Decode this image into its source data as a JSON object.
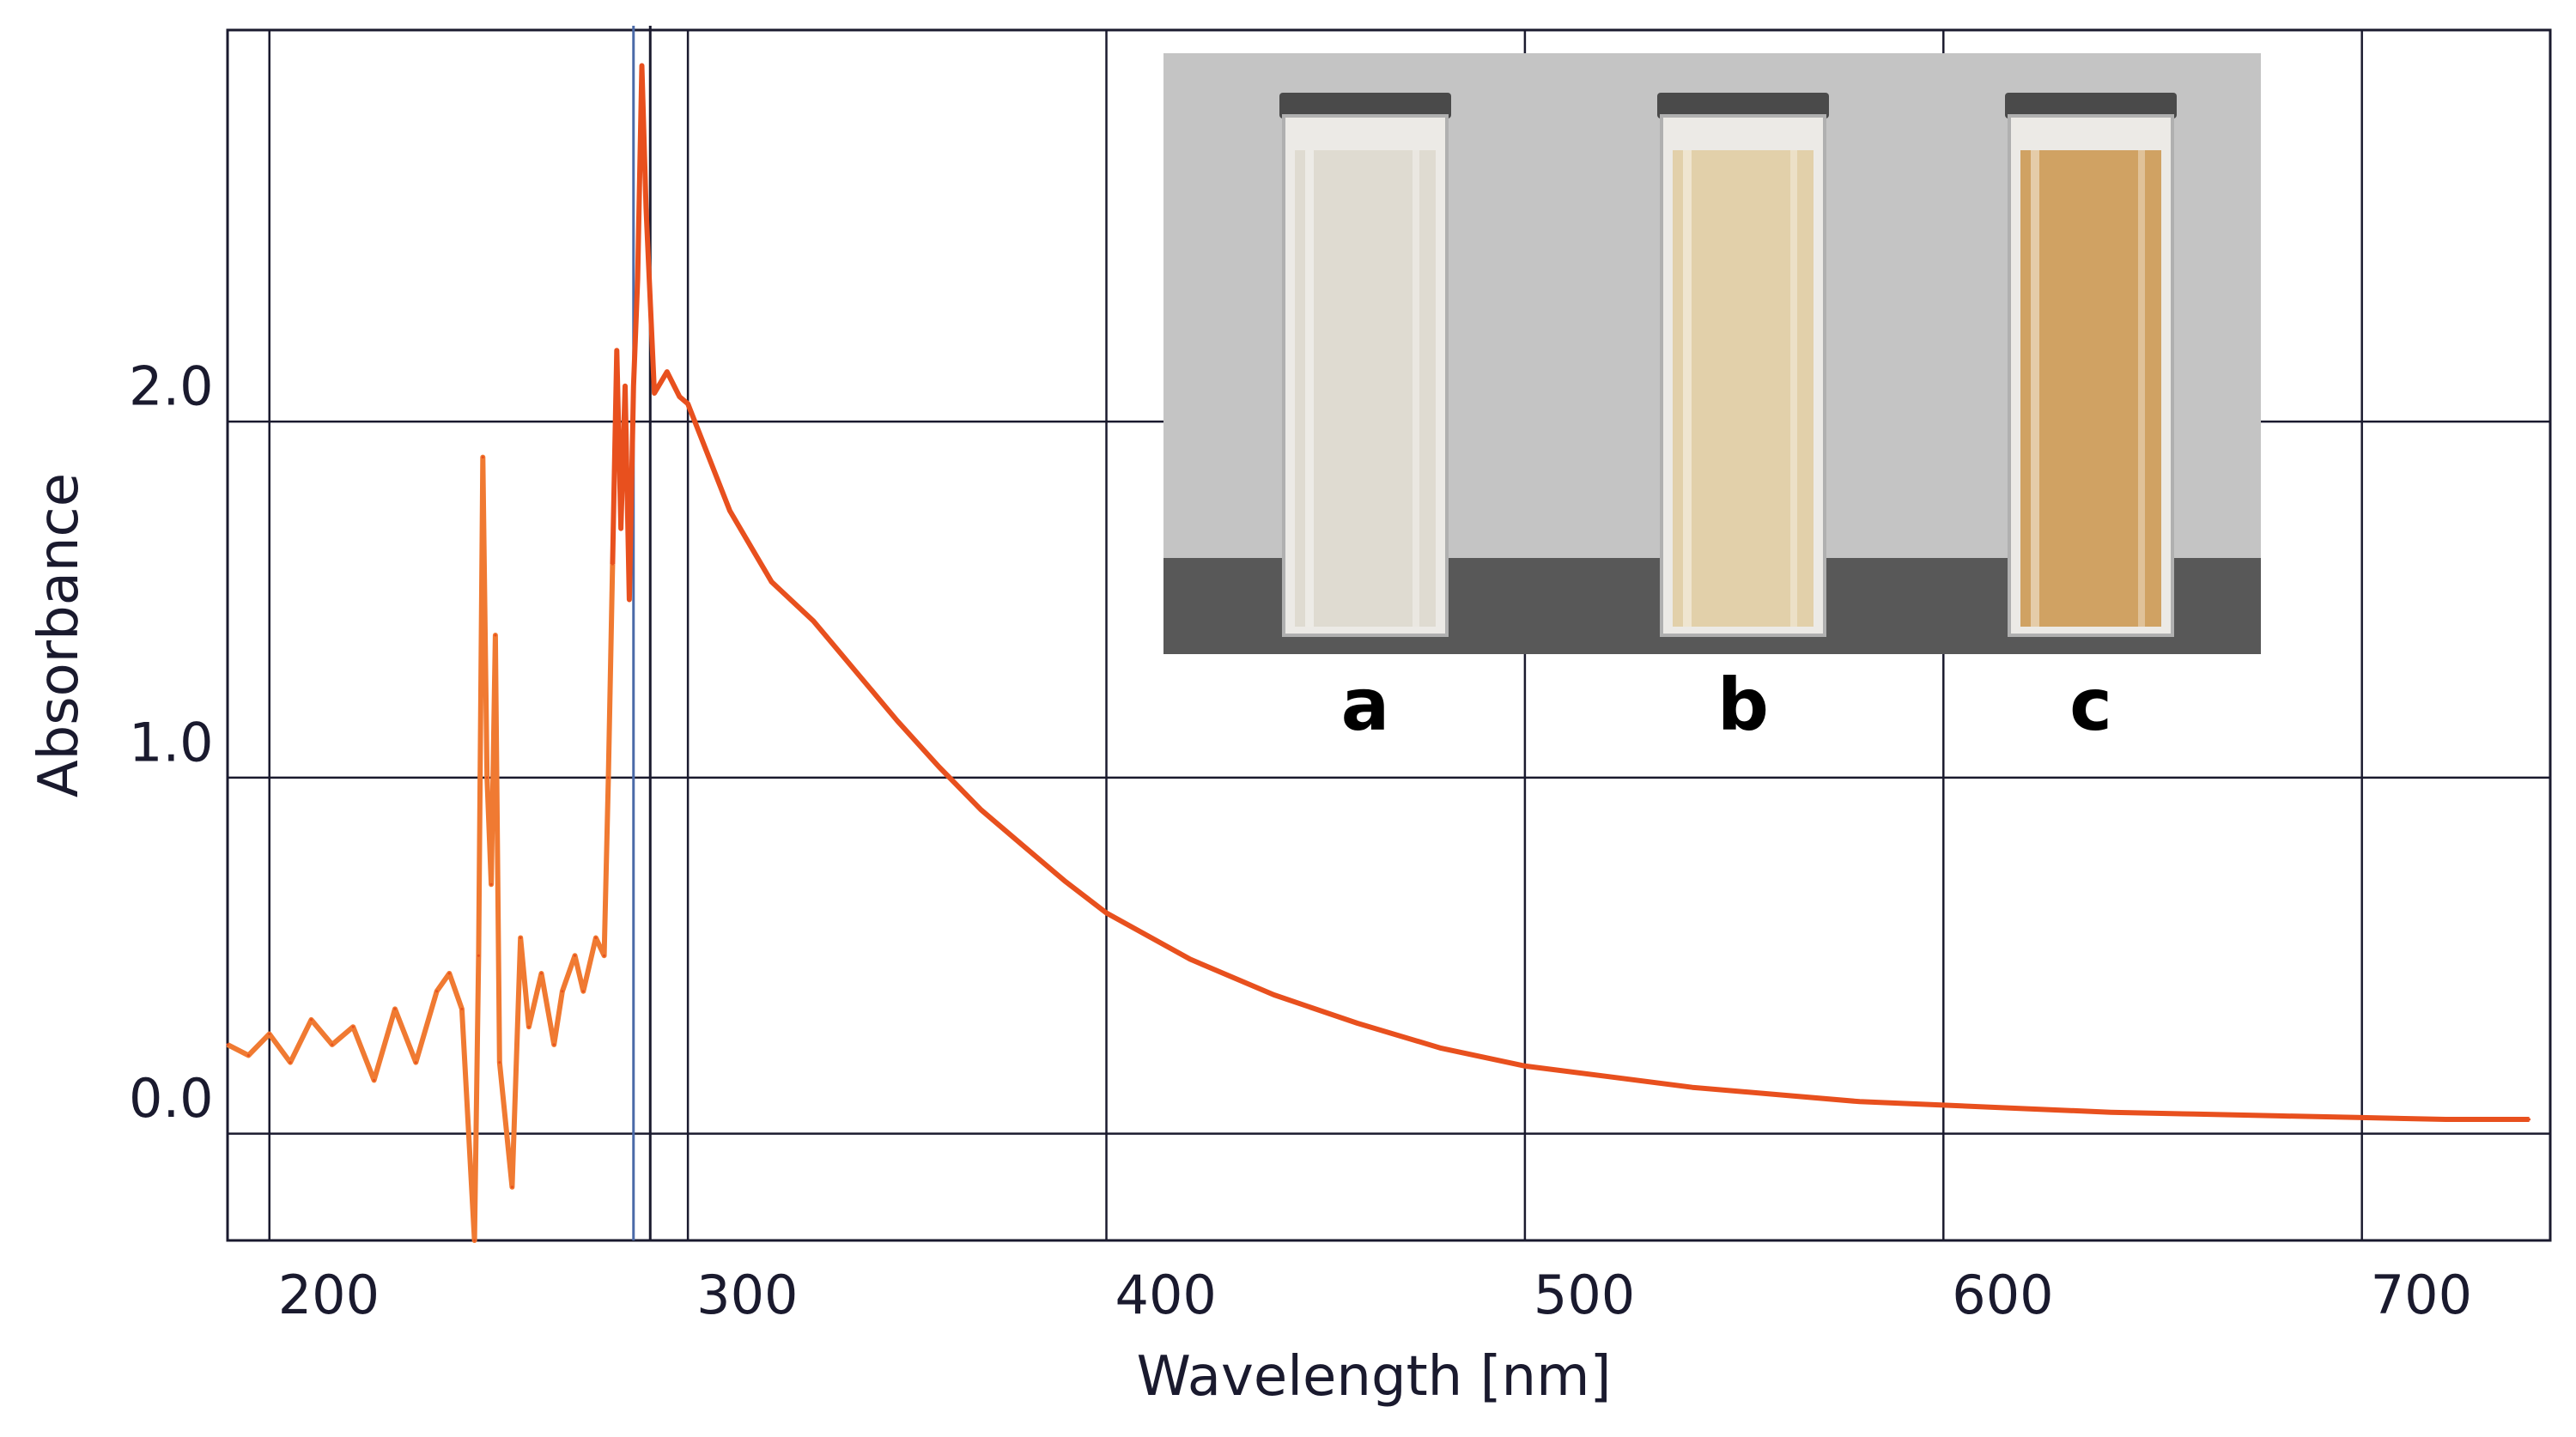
{
  "chart_data": {
    "type": "line",
    "title": "",
    "xlabel": "Wavelength [nm]",
    "ylabel": "Absorbance",
    "xlim": [
      190,
      745
    ],
    "ylim": [
      -0.4,
      3.0
    ],
    "x_ticks": [
      200,
      300,
      400,
      500,
      600,
      700
    ],
    "y_ticks": [
      0.0,
      1.0,
      2.0
    ],
    "x_tick_labels": [
      "200",
      "300",
      "400",
      "500",
      "600",
      "700"
    ],
    "y_tick_labels": [
      "0.0",
      "1.0",
      "2.0"
    ],
    "grid": true,
    "legend": "none",
    "line_color": "#e8501e",
    "noise_color": "#f07a32",
    "series": [
      {
        "x": [
          190,
          195,
          200,
          205,
          210,
          215,
          220,
          225,
          230,
          235,
          240,
          243,
          246,
          249,
          250,
          251,
          252,
          253,
          254,
          255,
          258,
          260,
          262,
          265,
          268,
          270,
          273,
          275,
          278,
          280,
          281,
          282,
          283,
          284,
          285,
          286,
          287,
          288,
          289,
          290,
          292,
          295,
          298,
          300,
          305,
          310,
          315,
          320,
          330,
          340,
          350,
          360,
          370,
          380,
          390,
          400,
          420,
          440,
          460,
          480,
          500,
          520,
          540,
          560,
          580,
          600,
          620,
          640,
          660,
          680,
          700,
          720,
          740
        ],
        "y": [
          0.15,
          0.12,
          0.18,
          0.1,
          0.22,
          0.15,
          0.2,
          0.05,
          0.25,
          0.1,
          0.3,
          0.35,
          0.25,
          -0.4,
          0.4,
          1.8,
          0.9,
          0.6,
          1.3,
          0.1,
          -0.25,
          0.45,
          0.2,
          0.35,
          0.15,
          0.3,
          0.4,
          0.3,
          0.45,
          0.4,
          0.9,
          1.5,
          2.1,
          1.6,
          2.0,
          1.4,
          2.0,
          2.3,
          2.9,
          2.5,
          1.98,
          2.04,
          1.97,
          1.95,
          1.8,
          1.65,
          1.55,
          1.45,
          1.34,
          1.2,
          1.06,
          0.93,
          0.81,
          0.71,
          0.61,
          0.52,
          0.39,
          0.29,
          0.21,
          0.14,
          0.09,
          0.06,
          0.03,
          0.01,
          -0.01,
          -0.02,
          -0.03,
          -0.04,
          -0.045,
          -0.05,
          -0.055,
          -0.06,
          -0.06
        ]
      }
    ]
  },
  "inset": {
    "labels": [
      "a",
      "b",
      "c"
    ],
    "liquid_colors": [
      "#dedad0",
      "#e2cfa6",
      "#cf9e5c"
    ],
    "backdrop_color": "#c4c4c4",
    "table_color": "#585858"
  }
}
